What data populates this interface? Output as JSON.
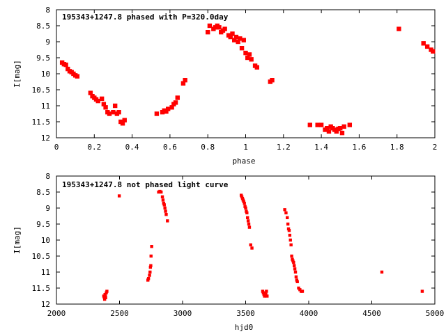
{
  "chart_data": [
    {
      "type": "scatter",
      "title": "195343+1247.8 phased with P=320.0day",
      "xlabel": "phase",
      "ylabel": "I[mag]",
      "xlim": [
        0,
        2
      ],
      "ylim": [
        12,
        8
      ],
      "y_inverted": true,
      "grid": false,
      "marker_color": "#ff0000",
      "x_ticks": [
        "0",
        "0.2",
        "0.4",
        "0.6",
        "0.8",
        "1",
        "1.2",
        "1.4",
        "1.6",
        "1.8",
        "2"
      ],
      "y_ticks": [
        "8",
        "8.5",
        "9",
        "9.5",
        "10",
        "10.5",
        "11",
        "11.5",
        "12"
      ],
      "x": [
        0.03,
        0.04,
        0.05,
        0.06,
        0.07,
        0.08,
        0.09,
        0.1,
        0.11,
        0.18,
        0.19,
        0.2,
        0.21,
        0.22,
        0.24,
        0.25,
        0.26,
        0.27,
        0.28,
        0.3,
        0.31,
        0.32,
        0.33,
        0.34,
        0.35,
        0.36,
        0.53,
        0.56,
        0.57,
        0.58,
        0.59,
        0.61,
        0.62,
        0.63,
        0.64,
        0.67,
        0.68,
        0.8,
        0.81,
        0.83,
        0.84,
        0.85,
        0.86,
        0.87,
        0.88,
        0.89,
        0.91,
        0.92,
        0.93,
        0.94,
        0.95,
        0.96,
        0.97,
        0.98,
        0.99,
        1.0,
        1.01,
        1.02,
        1.03,
        1.05,
        1.06,
        1.13,
        1.14,
        1.34,
        1.38,
        1.4,
        1.42,
        1.43,
        1.44,
        1.45,
        1.46,
        1.47,
        1.48,
        1.49,
        1.5,
        1.51,
        1.52,
        1.55,
        1.81,
        1.94,
        1.96,
        1.98,
        1.99
      ],
      "y": [
        9.65,
        9.7,
        9.72,
        9.85,
        9.92,
        9.95,
        10.0,
        10.05,
        10.08,
        10.6,
        10.7,
        10.75,
        10.8,
        10.85,
        10.78,
        10.95,
        11.05,
        11.2,
        11.25,
        11.2,
        11.0,
        11.25,
        11.2,
        11.5,
        11.55,
        11.45,
        11.25,
        11.2,
        11.15,
        11.18,
        11.1,
        11.05,
        10.95,
        10.9,
        10.75,
        10.3,
        10.2,
        8.7,
        8.5,
        8.6,
        8.55,
        8.5,
        8.55,
        8.7,
        8.65,
        8.6,
        8.8,
        8.85,
        8.75,
        8.95,
        8.85,
        9.0,
        8.9,
        9.2,
        8.95,
        9.35,
        9.5,
        9.4,
        9.55,
        9.75,
        9.8,
        10.25,
        10.2,
        11.6,
        11.6,
        11.6,
        11.75,
        11.7,
        11.8,
        11.65,
        11.7,
        11.75,
        11.8,
        11.72,
        11.7,
        11.85,
        11.65,
        11.6,
        8.6,
        9.05,
        9.15,
        9.25,
        9.3
      ]
    },
    {
      "type": "scatter",
      "title": "195343+1247.8 not phased light curve",
      "xlabel": "hjd0",
      "ylabel": "I[mag]",
      "xlim": [
        2000,
        5000
      ],
      "ylim": [
        12,
        8
      ],
      "y_inverted": true,
      "grid": false,
      "marker_color": "#ff0000",
      "x_ticks": [
        "2000",
        "2500",
        "3000",
        "3500",
        "4000",
        "4500",
        "5000"
      ],
      "y_ticks": [
        "8",
        "8.5",
        "9",
        "9.5",
        "10",
        "10.5",
        "11",
        "11.5",
        "12"
      ],
      "x": [
        2375,
        2380,
        2382,
        2385,
        2388,
        2390,
        2395,
        2400,
        2498,
        2725,
        2730,
        2738,
        2742,
        2745,
        2748,
        2750,
        2755,
        2810,
        2820,
        2830,
        2840,
        2845,
        2850,
        2855,
        2860,
        2865,
        2870,
        2880,
        3465,
        3470,
        3475,
        3480,
        3485,
        3490,
        3495,
        3500,
        3505,
        3510,
        3515,
        3520,
        3525,
        3530,
        3540,
        3550,
        3635,
        3640,
        3645,
        3650,
        3655,
        3660,
        3665,
        3670,
        3810,
        3820,
        3830,
        3835,
        3840,
        3845,
        3850,
        3855,
        3860,
        3865,
        3870,
        3875,
        3880,
        3885,
        3890,
        3895,
        3900,
        3905,
        3910,
        3920,
        3930,
        3940,
        3950,
        4580,
        4900
      ],
      "y": [
        11.75,
        11.8,
        11.85,
        11.7,
        11.75,
        11.8,
        11.65,
        11.6,
        8.62,
        11.25,
        11.2,
        11.1,
        11.0,
        10.85,
        10.8,
        10.5,
        10.2,
        8.5,
        8.48,
        8.5,
        8.65,
        8.75,
        8.85,
        8.9,
        9.0,
        9.1,
        9.2,
        9.4,
        8.6,
        8.65,
        8.7,
        8.75,
        8.8,
        8.85,
        8.95,
        9.0,
        9.1,
        9.15,
        9.3,
        9.4,
        9.5,
        9.6,
        10.15,
        10.25,
        11.6,
        11.65,
        11.7,
        11.75,
        11.65,
        11.7,
        11.6,
        11.75,
        9.05,
        9.15,
        9.3,
        9.5,
        9.65,
        9.7,
        9.85,
        10.0,
        10.15,
        10.5,
        10.6,
        10.65,
        10.7,
        10.8,
        10.9,
        11.0,
        11.15,
        11.25,
        11.3,
        11.5,
        11.55,
        11.6,
        11.6,
        11.0,
        11.6
      ]
    }
  ]
}
